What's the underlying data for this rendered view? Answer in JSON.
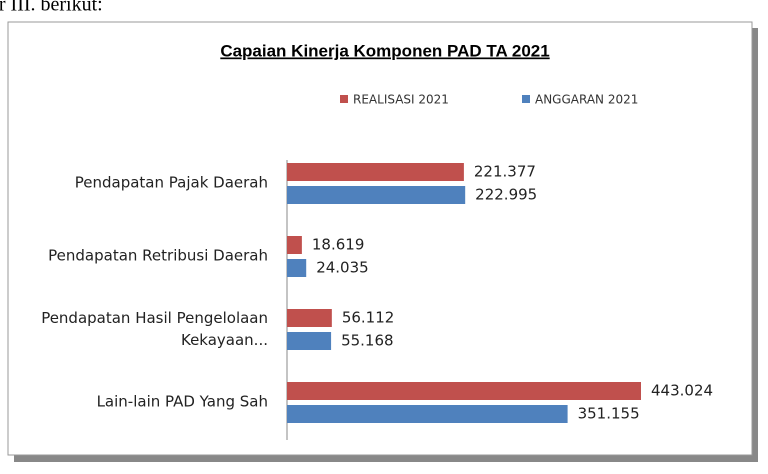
{
  "page_text": "ar III. berikut:",
  "chart_data": {
    "type": "barh",
    "title": "Capaian Kinerja Komponen PAD TA 2021",
    "categories": [
      "Pendapatan Pajak Daerah",
      "Pendapatan Retribusi Daerah",
      "Pendapatan Hasil Pengelolaan Kekayaan...",
      "Lain-lain PAD Yang Sah"
    ],
    "series": [
      {
        "name": "REALISASI 2021",
        "color": "#c0504d",
        "values": [
          221.377,
          18.619,
          56.112,
          443.024
        ]
      },
      {
        "name": "ANGGARAN 2021",
        "color": "#4f81bd",
        "values": [
          222.995,
          24.035,
          55.168,
          351.155
        ]
      }
    ],
    "legend": "top"
  }
}
